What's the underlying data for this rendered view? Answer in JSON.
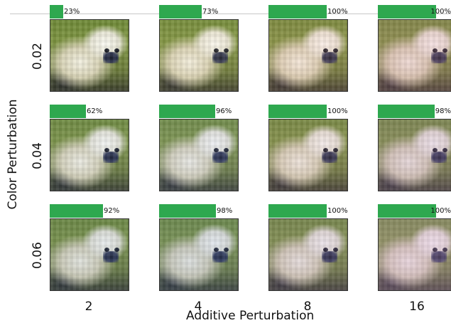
{
  "axes": {
    "y_title": "Color Perturbation",
    "x_title": "Additive Perturbation",
    "row_labels": [
      "0.02",
      "0.04",
      "0.06"
    ],
    "col_labels": [
      "2",
      "4",
      "8",
      "16"
    ]
  },
  "bar_color": "#2ea84f",
  "grid": [
    [
      {
        "label": "23%",
        "value": 0.23
      },
      {
        "label": "73%",
        "value": 0.73
      },
      {
        "label": "100%",
        "value": 1.0
      },
      {
        "label": "100%",
        "value": 1.0
      }
    ],
    [
      {
        "label": "62%",
        "value": 0.62
      },
      {
        "label": "96%",
        "value": 0.96
      },
      {
        "label": "100%",
        "value": 1.0
      },
      {
        "label": "98%",
        "value": 0.98
      }
    ],
    [
      {
        "label": "92%",
        "value": 0.92
      },
      {
        "label": "98%",
        "value": 0.98
      },
      {
        "label": "100%",
        "value": 1.0
      },
      {
        "label": "100%",
        "value": 1.0
      }
    ]
  ]
}
